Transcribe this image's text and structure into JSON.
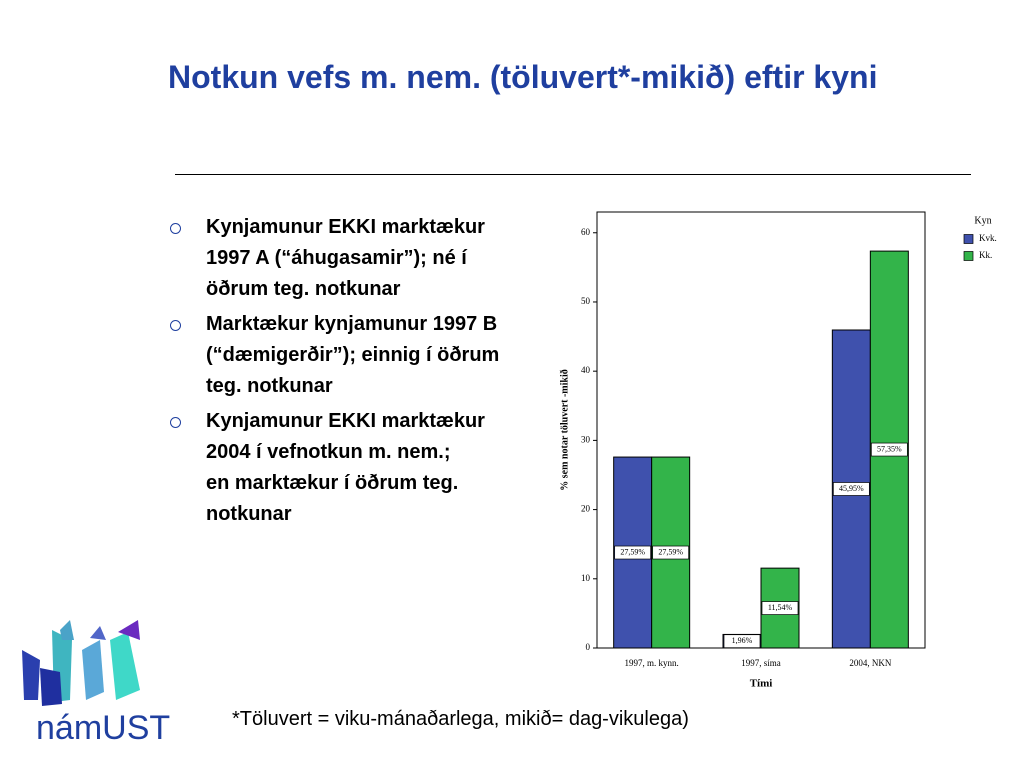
{
  "slide": {
    "title": "Notkun vefs m. nem. (töluvert*-mikið) eftir kyni",
    "bullets": [
      "Kynjamunur EKKI marktækur 1997 A (“áhugasamir”); né í öðrum teg. notkunar",
      "Marktækur kynjamunur 1997 B (“dæmigerðir”); einnig í öðrum teg. notkunar",
      "Kynjamunur EKKI marktækur 2004 í vefnotkun m. nem.;\nen marktækur í öðrum teg. notkunar"
    ],
    "footnote": "*Töluvert = viku-mánaðarlega, mikið= dag-vikulega)",
    "logo": "námUST"
  },
  "chart_data": {
    "type": "bar",
    "x_label": "Tími",
    "y_label": "% sem notar töluvert -mikið",
    "legend_title": "Kyn",
    "categories": [
      "1997, m. kynn.",
      "1997, síma",
      "2004, NKN"
    ],
    "series": [
      {
        "name": "Kvk.",
        "color": "#3f51ad",
        "values": [
          27.59,
          1.96,
          45.95
        ],
        "value_labels": [
          "27,59%",
          "1,96%",
          "45,95%"
        ]
      },
      {
        "name": "Kk.",
        "color": "#33b44a",
        "values": [
          27.59,
          11.54,
          57.35
        ],
        "value_labels": [
          "27,59%",
          "11,54%",
          "57,35%"
        ]
      }
    ],
    "ylim": [
      0,
      63
    ],
    "yticks": [
      0,
      10,
      20,
      30,
      40,
      50,
      60
    ]
  }
}
